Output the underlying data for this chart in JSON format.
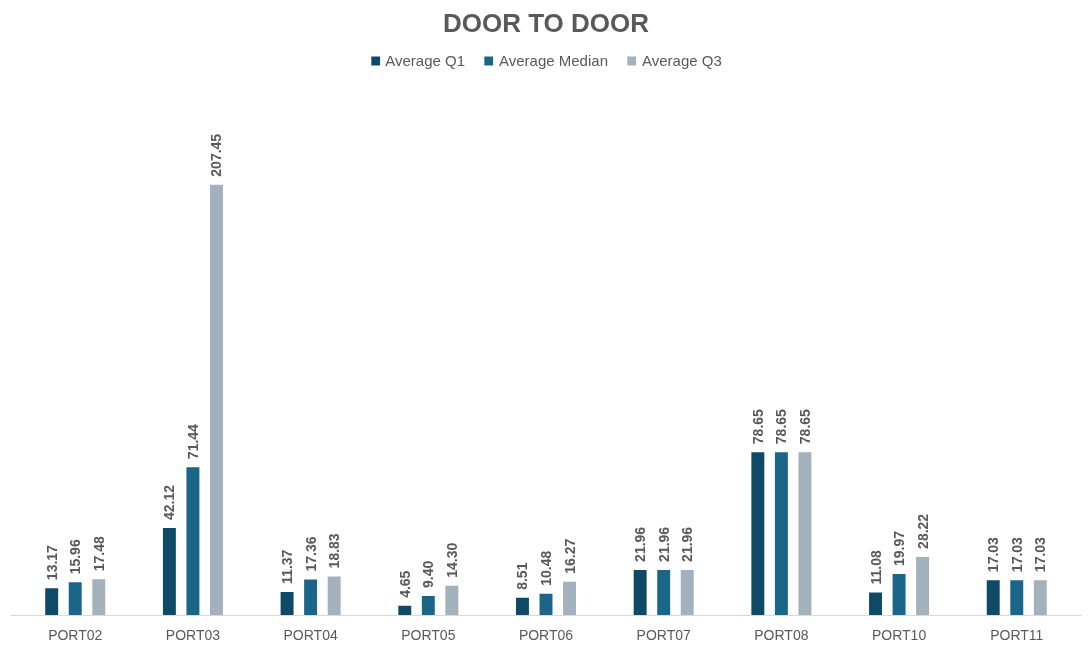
{
  "chart_data": {
    "type": "bar",
    "title": "DOOR TO DOOR",
    "categories": [
      "PORT02",
      "PORT03",
      "PORT04",
      "PORT05",
      "PORT06",
      "PORT07",
      "PORT08",
      "PORT10",
      "PORT11"
    ],
    "series": [
      {
        "name": "Average Q1",
        "color": "#0e4a66",
        "values": [
          13.17,
          42.12,
          11.37,
          4.65,
          8.51,
          21.96,
          78.65,
          11.08,
          17.03
        ],
        "value_labels": [
          "13.17",
          "42.12",
          "11.37",
          "4.65",
          "8.51",
          "21.96",
          "78.65",
          "11.08",
          "17.03"
        ]
      },
      {
        "name": "Average Median",
        "color": "#1a6688",
        "values": [
          15.96,
          71.44,
          17.36,
          9.4,
          10.48,
          21.96,
          78.65,
          19.97,
          17.03
        ],
        "value_labels": [
          "15.96",
          "71.44",
          "17.36",
          "9.40",
          "10.48",
          "21.96",
          "78.65",
          "19.97",
          "17.03"
        ]
      },
      {
        "name": "Average Q3",
        "color": "#a3b1bd",
        "values": [
          17.48,
          207.45,
          18.83,
          14.3,
          16.27,
          21.96,
          78.65,
          28.22,
          17.03
        ],
        "value_labels": [
          "17.48",
          "207.45",
          "18.83",
          "14.30",
          "16.27",
          "21.96",
          "78.65",
          "28.22",
          "17.03"
        ]
      }
    ],
    "legend": "top",
    "grid": false
  }
}
